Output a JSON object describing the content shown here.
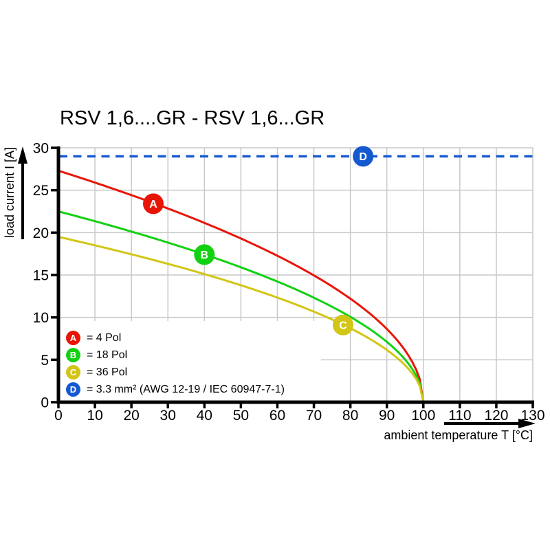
{
  "title": "RSV 1,6....GR - RSV 1,6...GR",
  "axes": {
    "y_label": "load current I [A]",
    "x_label": "ambient temperature T [°C]"
  },
  "legend": [
    {
      "letter": "A",
      "color": "#e81507",
      "label": "= 4 Pol"
    },
    {
      "letter": "B",
      "color": "#12d112",
      "label": "= 18 Pol"
    },
    {
      "letter": "C",
      "color": "#d2c516",
      "label": "= 36 Pol"
    },
    {
      "letter": "D",
      "color": "#1559d1",
      "label": "= 3.3 mm² (AWG 12-19 / IEC 60947-7-1)"
    }
  ],
  "chart_data": {
    "type": "line",
    "title": "RSV 1,6....GR - RSV 1,6...GR",
    "xlabel": "ambient temperature T [°C]",
    "ylabel": "load current I [A]",
    "xlim": [
      0,
      130
    ],
    "ylim": [
      0,
      30
    ],
    "x_ticks": [
      0,
      10,
      20,
      30,
      40,
      50,
      60,
      70,
      80,
      90,
      100,
      110,
      120,
      130
    ],
    "y_ticks": [
      0,
      5,
      10,
      15,
      20,
      25,
      30
    ],
    "grid": true,
    "legend_position": "bottom-left-inside",
    "curve_model": "I(T) = I0 * sqrt(1 - T/100)",
    "series": [
      {
        "id": "A",
        "label": "4 Pol",
        "color": "#e81507",
        "line": "solid",
        "i0": 27.3,
        "t_end": 100,
        "points": [
          [
            0,
            27.3
          ],
          [
            10,
            25.9
          ],
          [
            20,
            24.4
          ],
          [
            30,
            22.8
          ],
          [
            40,
            21.1
          ],
          [
            50,
            19.3
          ],
          [
            60,
            17.3
          ],
          [
            70,
            15.0
          ],
          [
            80,
            12.2
          ],
          [
            90,
            8.6
          ],
          [
            100,
            0
          ]
        ],
        "marker": {
          "letter": "A",
          "t": 26,
          "i": 23.4
        }
      },
      {
        "id": "B",
        "label": "18 Pol",
        "color": "#12d112",
        "line": "solid",
        "i0": 22.5,
        "t_end": 100,
        "points": [
          [
            0,
            22.5
          ],
          [
            10,
            21.3
          ],
          [
            20,
            20.1
          ],
          [
            30,
            18.8
          ],
          [
            40,
            17.4
          ],
          [
            50,
            15.9
          ],
          [
            60,
            14.2
          ],
          [
            70,
            12.3
          ],
          [
            80,
            10.1
          ],
          [
            90,
            7.1
          ],
          [
            100,
            0
          ]
        ],
        "marker": {
          "letter": "B",
          "t": 40,
          "i": 17.4
        }
      },
      {
        "id": "C",
        "label": "36 Pol",
        "color": "#d2c516",
        "line": "solid",
        "i0": 19.5,
        "t_end": 100,
        "points": [
          [
            0,
            19.5
          ],
          [
            10,
            18.5
          ],
          [
            20,
            17.4
          ],
          [
            30,
            16.3
          ],
          [
            40,
            15.1
          ],
          [
            50,
            13.8
          ],
          [
            60,
            12.3
          ],
          [
            70,
            10.7
          ],
          [
            80,
            8.7
          ],
          [
            90,
            6.2
          ],
          [
            100,
            0
          ]
        ],
        "marker": {
          "letter": "C",
          "t": 78,
          "i": 9.1
        }
      },
      {
        "id": "D",
        "label": "3.3 mm² (AWG 12-19 / IEC 60947-7-1)",
        "color": "#1559d1",
        "line": "dashed",
        "const_i": 29,
        "t_range": [
          0,
          130
        ],
        "marker": {
          "letter": "D",
          "t": 83.5,
          "i": 29
        }
      }
    ]
  }
}
